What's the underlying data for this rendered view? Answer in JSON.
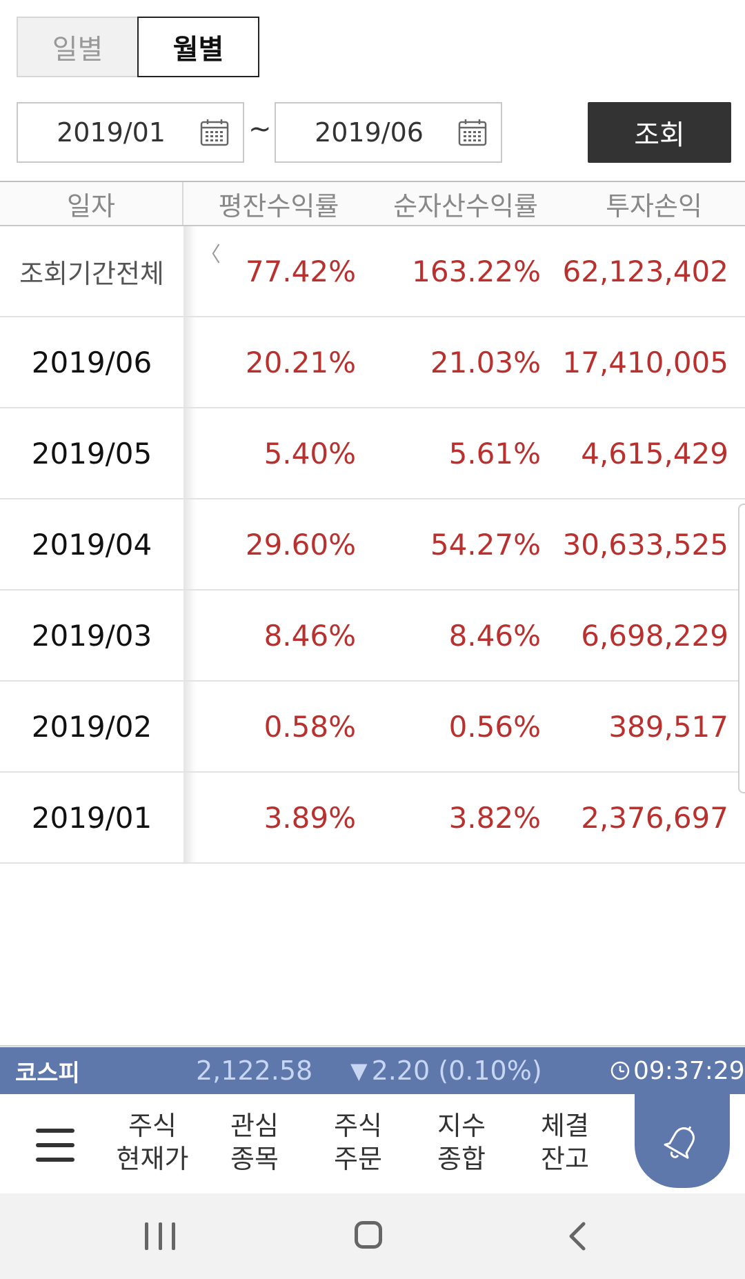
{
  "period_toggle": {
    "daily": "일별",
    "monthly": "월별",
    "selected": "월별"
  },
  "date_range": {
    "from": "2019/01",
    "separator": "~",
    "to": "2019/06",
    "icon": "calendar-icon"
  },
  "query_button": "조회",
  "table": {
    "headers": {
      "date": "일자",
      "avg_return": "평잔수익률",
      "net_asset_return": "순자산수익률",
      "profit": "투자손익"
    },
    "scroll_hint": "〈",
    "total": {
      "date": "조회기간전체",
      "avg_return": "77.42%",
      "net_asset_return": "163.22%",
      "profit": "62,123,402"
    },
    "rows": [
      {
        "date": "2019/06",
        "avg_return": "20.21%",
        "net_asset_return": "21.03%",
        "profit": "17,410,005"
      },
      {
        "date": "2019/05",
        "avg_return": "5.40%",
        "net_asset_return": "5.61%",
        "profit": "4,615,429"
      },
      {
        "date": "2019/04",
        "avg_return": "29.60%",
        "net_asset_return": "54.27%",
        "profit": "30,633,525"
      },
      {
        "date": "2019/03",
        "avg_return": "8.46%",
        "net_asset_return": "8.46%",
        "profit": "6,698,229"
      },
      {
        "date": "2019/02",
        "avg_return": "0.58%",
        "net_asset_return": "0.56%",
        "profit": "389,517"
      },
      {
        "date": "2019/01",
        "avg_return": "3.89%",
        "net_asset_return": "3.82%",
        "profit": "2,376,697"
      }
    ],
    "value_color": "#b8312f"
  },
  "ticker": {
    "name": "코스피",
    "value": "2,122.58",
    "arrow": "▼",
    "change": "2.20 (0.10%)",
    "time": "09:37:29",
    "bg_color": "#5e78ac"
  },
  "menu": {
    "items": [
      {
        "line1": "주식",
        "line2": "현재가"
      },
      {
        "line1": "관심",
        "line2": "종목"
      },
      {
        "line1": "주식",
        "line2": "주문"
      },
      {
        "line1": "지수",
        "line2": "종합"
      },
      {
        "line1": "체결",
        "line2": "잔고"
      }
    ],
    "menu_icon": "hamburger-icon",
    "alert_icon": "bell-icon"
  },
  "system_nav": {
    "recent": "recent-apps-icon",
    "home": "home-icon",
    "back": "back-icon"
  }
}
